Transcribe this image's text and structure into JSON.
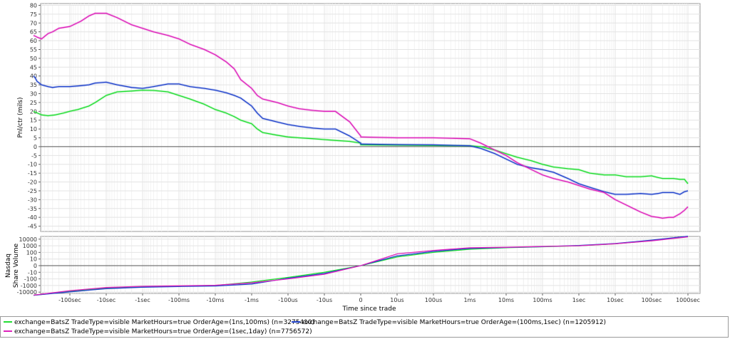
{
  "chart_data": [
    {
      "type": "line",
      "panel": "top",
      "ylabel": "Pnl/ctr (mils)",
      "ylim": [
        -48,
        81
      ],
      "yticks": [
        80,
        75,
        70,
        65,
        60,
        55,
        50,
        45,
        40,
        35,
        30,
        25,
        20,
        15,
        10,
        5,
        0,
        -5,
        -10,
        -15,
        -20,
        -25,
        -30,
        -35,
        -40,
        -45
      ],
      "x_scale": "symmetric-log",
      "x_ticks": [
        "-100sec",
        "-10sec",
        "-1sec",
        "-100ms",
        "-10ms",
        "-1ms",
        "-100us",
        "-10us",
        "0",
        "10us",
        "100us",
        "1ms",
        "10ms",
        "100ms",
        "1sec",
        "10sec",
        "100sec",
        "1000sec"
      ],
      "grid": true,
      "series": [
        {
          "name": "exchange=BatsZ TradeType=visible MarketHours=true OrderAge=(1ns,100ms) (n=3275410)",
          "color": "#22dd33",
          "x": [
            -1000,
            -600,
            -400,
            -250,
            -150,
            -100,
            -60,
            -30,
            -20,
            -10,
            -5,
            -2,
            -1,
            -0.5,
            -0.2,
            -0.1,
            -0.05,
            -0.02,
            -0.01,
            -0.005,
            -0.003,
            -0.002,
            -0.001,
            -0.0007,
            -0.0005,
            -0.0002,
            -0.0001,
            -5e-05,
            -2e-05,
            -1e-05,
            -5e-06,
            -2e-06,
            -1e-06,
            0,
            1e-06,
            1e-05,
            0.0001,
            0.001,
            0.002,
            0.005,
            0.01,
            0.02,
            0.05,
            0.1,
            0.2,
            0.5,
            1,
            2,
            5,
            10,
            20,
            50,
            100,
            150,
            200,
            400,
            600,
            800,
            1000
          ],
          "values": [
            20,
            18,
            17.5,
            18,
            19,
            20,
            21,
            23,
            25,
            29,
            31,
            31.5,
            32,
            31.8,
            31,
            29,
            27,
            24,
            21,
            19,
            17,
            15,
            13,
            10,
            8,
            6.5,
            5.5,
            5,
            4.5,
            4,
            3.5,
            3,
            2,
            1.5,
            1,
            0.8,
            0.6,
            0.5,
            0,
            -2,
            -4,
            -6,
            -8,
            -10,
            -11.5,
            -12.5,
            -13,
            -15,
            -16,
            -16,
            -17,
            -17,
            -16.5,
            -17.5,
            -18,
            -18,
            -18.5,
            -18.5,
            -21
          ]
        },
        {
          "name": "exchange=BatsZ TradeType=visible MarketHours=true OrderAge=(100ms,1sec) (n=1205912)",
          "color": "#2244cc",
          "x": [
            -1000,
            -900,
            -800,
            -600,
            -400,
            -300,
            -200,
            -100,
            -50,
            -30,
            -20,
            -10,
            -5,
            -2,
            -1,
            -0.5,
            -0.2,
            -0.1,
            -0.05,
            -0.02,
            -0.01,
            -0.005,
            -0.003,
            -0.002,
            -0.001,
            -0.0007,
            -0.0005,
            -0.0002,
            -0.0001,
            -5e-05,
            -2e-05,
            -1e-05,
            -5e-06,
            -2e-06,
            -1e-06,
            0,
            1e-06,
            1e-05,
            0.0001,
            0.001,
            0.002,
            0.005,
            0.01,
            0.02,
            0.05,
            0.1,
            0.2,
            0.5,
            1,
            2,
            5,
            10,
            20,
            50,
            100,
            150,
            200,
            400,
            600,
            800,
            1000
          ],
          "values": [
            40,
            39,
            37,
            35,
            34,
            33.5,
            34,
            34,
            34.5,
            35,
            36,
            36.5,
            35,
            33.5,
            33,
            34,
            35.5,
            35.5,
            34,
            33,
            32,
            30.5,
            29,
            27.5,
            23,
            19,
            16,
            14,
            12.5,
            11.5,
            10.5,
            10,
            10,
            6,
            2,
            1.5,
            1.5,
            1.2,
            1,
            0.5,
            -1,
            -4,
            -7,
            -10,
            -12,
            -13,
            -14.5,
            -18,
            -21,
            -23,
            -25.5,
            -27,
            -27,
            -26.5,
            -27,
            -26.5,
            -26,
            -26,
            -27,
            -25.5,
            -25
          ]
        },
        {
          "name": "exchange=BatsZ TradeType=visible MarketHours=true OrderAge=(1sec,1day) (n=7756572)",
          "color": "#dd22bb",
          "x": [
            -1000,
            -800,
            -600,
            -400,
            -300,
            -200,
            -100,
            -50,
            -30,
            -20,
            -10,
            -5,
            -2,
            -1,
            -0.5,
            -0.2,
            -0.1,
            -0.05,
            -0.02,
            -0.01,
            -0.005,
            -0.003,
            -0.002,
            -0.001,
            -0.0007,
            -0.0005,
            -0.0002,
            -0.0001,
            -5e-05,
            -2e-05,
            -1e-05,
            -5e-06,
            -2e-06,
            -1e-06,
            0,
            1e-06,
            1e-05,
            0.0001,
            0.001,
            0.002,
            0.005,
            0.01,
            0.02,
            0.05,
            0.1,
            0.2,
            0.5,
            1,
            2,
            5,
            10,
            20,
            50,
            100,
            150,
            200,
            300,
            400,
            600,
            800,
            1000
          ],
          "values": [
            63,
            62,
            61,
            64,
            65,
            67,
            68,
            71,
            74,
            75.5,
            75.5,
            73,
            69,
            67,
            65,
            63,
            61,
            58,
            55,
            52,
            48,
            44,
            38,
            33,
            29,
            27,
            25,
            23,
            21.5,
            20.5,
            20,
            20,
            14,
            6,
            5.5,
            5.5,
            5,
            5,
            4.5,
            2,
            -2,
            -5,
            -9,
            -13,
            -16,
            -18,
            -20,
            -22,
            -24,
            -26,
            -30,
            -33,
            -37,
            -39.5,
            -40,
            -40.5,
            -40,
            -40,
            -38,
            -36,
            -34
          ]
        }
      ]
    },
    {
      "type": "line",
      "panel": "bottom",
      "ylabel": "Nasdaq Share Volume",
      "y_scale": "symmetric-log",
      "yticks": [
        "10000",
        "1000",
        "100",
        "10",
        "0",
        "-10",
        "-100",
        "-1000",
        "-10000"
      ],
      "xlabel": "Time since trade",
      "x_scale": "symmetric-log",
      "x_ticks": [
        "-100sec",
        "-10sec",
        "-1sec",
        "-100ms",
        "-10ms",
        "-1ms",
        "-100us",
        "-10us",
        "0",
        "10us",
        "100us",
        "1ms",
        "10ms",
        "100ms",
        "1sec",
        "10sec",
        "100sec",
        "1000sec"
      ],
      "grid": true,
      "series": [
        {
          "name": "exchange=BatsZ TradeType=visible MarketHours=true OrderAge=(1ns,100ms) (n=3275410)",
          "color": "#22dd33",
          "x": [
            -1000,
            -100,
            -10,
            -1,
            -0.1,
            -0.01,
            -0.001,
            -0.0001,
            -1e-05,
            0,
            1e-05,
            0.0001,
            0.001,
            0.01,
            0.1,
            1,
            10,
            100,
            1000
          ],
          "values": [
            -30000,
            -8000,
            -2500,
            -1500,
            -1200,
            -1000,
            -300,
            -60,
            -10,
            0,
            20,
            100,
            300,
            500,
            700,
            1000,
            2000,
            6000,
            25000
          ]
        },
        {
          "name": "exchange=BatsZ TradeType=visible MarketHours=true OrderAge=(100ms,1sec) (n=1205912)",
          "color": "#2244cc",
          "x": [
            -1000,
            -100,
            -10,
            -1,
            -0.1,
            -0.01,
            -0.001,
            -0.0001,
            -1e-05,
            0,
            1e-05,
            0.0001,
            0.001,
            0.01,
            0.1,
            1,
            10,
            100,
            1000
          ],
          "values": [
            -30000,
            -9000,
            -3000,
            -1800,
            -1400,
            -1200,
            -600,
            -80,
            -15,
            0,
            30,
            140,
            400,
            550,
            750,
            1100,
            2200,
            7000,
            28000
          ]
        },
        {
          "name": "exchange=BatsZ TradeType=visible MarketHours=true OrderAge=(1sec,1day) (n=7756572)",
          "color": "#dd22bb",
          "x": [
            -1000,
            -100,
            -10,
            -1,
            -0.1,
            -0.01,
            -0.001,
            -0.0001,
            -1e-05,
            0,
            1e-05,
            0.0001,
            0.001,
            0.01,
            0.1,
            1,
            10,
            100,
            1000
          ],
          "values": [
            -28000,
            -6000,
            -2000,
            -1300,
            -1100,
            -900,
            -400,
            -100,
            -20,
            0,
            60,
            200,
            500,
            600,
            800,
            1000,
            2000,
            5500,
            22000
          ]
        }
      ]
    }
  ],
  "legend": {
    "items": [
      {
        "label": "exchange=BatsZ TradeType=visible MarketHours=true OrderAge=(1ns,100ms) (n=3275410)",
        "color": "#22dd33"
      },
      {
        "label": "exchange=BatsZ TradeType=visible MarketHours=true OrderAge=(100ms,1sec) (n=1205912)",
        "color": "#2244cc"
      },
      {
        "label": "exchange=BatsZ TradeType=visible MarketHours=true OrderAge=(1sec,1day) (n=7756572)",
        "color": "#dd22bb"
      }
    ]
  },
  "axis_titles": {
    "top_y": "Pnl/ctr (mils)",
    "bottom_y_line1": "Nasdaq",
    "bottom_y_line2": "Share Volume",
    "x": "Time since trade"
  }
}
